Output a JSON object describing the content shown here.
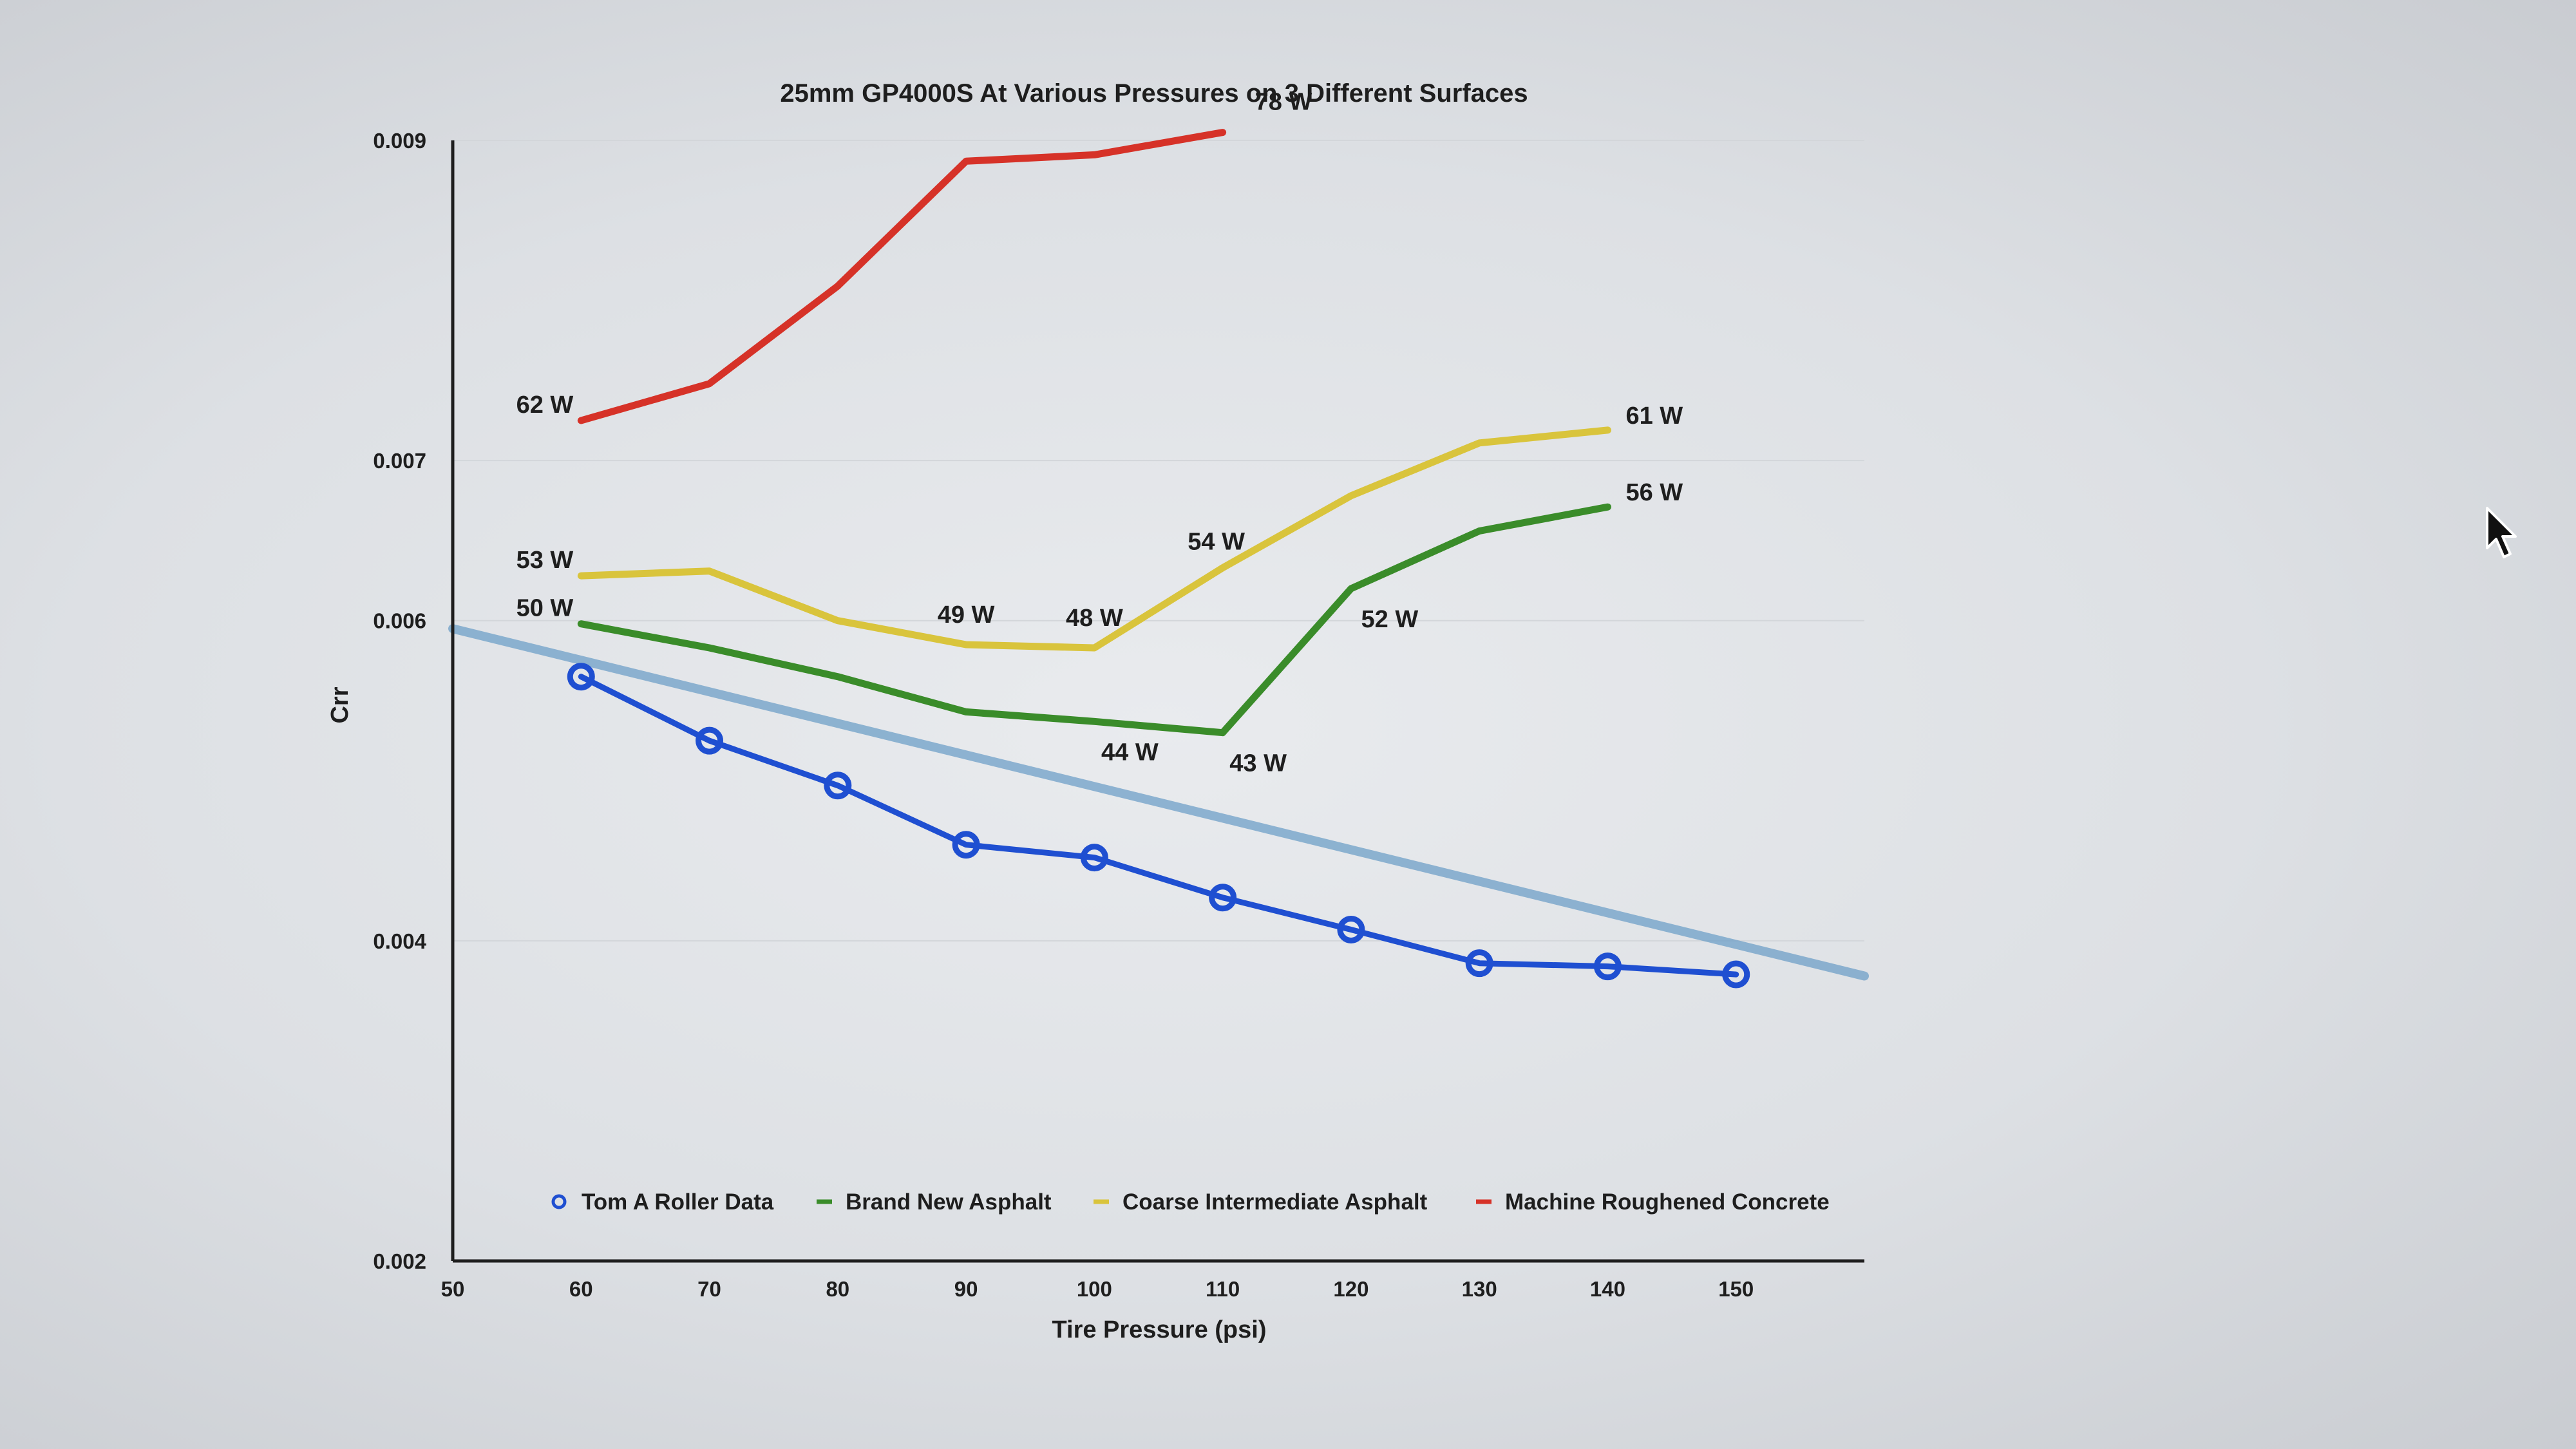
{
  "chart_data": {
    "type": "line",
    "title": "25mm GP4000S At Various Pressures on 3 Different Surfaces",
    "xlabel": "Tire Pressure (psi)",
    "ylabel": "Crr",
    "xlim": [
      50,
      160
    ],
    "ylim": [
      0.002,
      0.009
    ],
    "x_ticks": [
      50,
      60,
      70,
      80,
      90,
      100,
      110,
      120,
      130,
      140,
      150
    ],
    "y_ticks": [
      {
        "value": 0.002,
        "label": "0.002"
      },
      {
        "value": 0.004,
        "label": "0.004"
      },
      {
        "value": 0.006,
        "label": "0.006"
      },
      {
        "value": 0.007,
        "label": "0.007"
      },
      {
        "value": 0.009,
        "label": "0.009"
      }
    ],
    "y_tick_scale": {
      "note_values": "tick positions are evenly spaced as printed",
      "positions": [
        0.002,
        0.004,
        0.006,
        0.008,
        0.01
      ]
    },
    "grid": true,
    "legend_position": "bottom-inside",
    "series": [
      {
        "name": "Tom A Roller Data",
        "color": "#1f4fd1",
        "marker": "circle",
        "x": [
          60,
          70,
          80,
          90,
          100,
          110,
          120,
          130,
          140,
          150
        ],
        "y": [
          0.00565,
          0.00525,
          0.00497,
          0.0046,
          0.00452,
          0.00427,
          0.00407,
          0.00386,
          0.00384,
          0.00379
        ]
      },
      {
        "name": "Brand New Asphalt",
        "color": "#3a8c2a",
        "x": [
          60,
          70,
          80,
          90,
          100,
          110,
          120,
          130,
          140
        ],
        "y": [
          0.00598,
          0.00583,
          0.00565,
          0.00543,
          0.00537,
          0.0053,
          0.0062,
          0.00656,
          0.00671
        ],
        "point_labels": [
          {
            "x": 60,
            "text": "50 W"
          },
          {
            "x": 100,
            "text": "44 W"
          },
          {
            "x": 110,
            "text": "43 W"
          },
          {
            "x": 120,
            "text": "52 W"
          },
          {
            "x": 140,
            "text": "56 W"
          }
        ]
      },
      {
        "name": "Coarse Intermediate Asphalt",
        "color": "#d9c43c",
        "x": [
          60,
          70,
          80,
          90,
          100,
          110,
          120,
          130,
          140
        ],
        "y": [
          0.00628,
          0.00631,
          0.006,
          0.00585,
          0.00583,
          0.00633,
          0.00678,
          0.00711,
          0.00719
        ],
        "point_labels": [
          {
            "x": 60,
            "text": "53 W"
          },
          {
            "x": 90,
            "text": "49 W"
          },
          {
            "x": 100,
            "text": "48 W"
          },
          {
            "x": 110,
            "text": "54 W"
          },
          {
            "x": 140,
            "text": "61 W"
          }
        ]
      },
      {
        "name": "Machine Roughened Concrete",
        "color": "#d63228",
        "x": [
          60,
          70,
          80,
          90,
          100,
          110
        ],
        "y": [
          0.00725,
          0.00748,
          0.00809,
          0.00887,
          0.00891,
          0.00905
        ],
        "point_labels": [
          {
            "x": 60,
            "text": "62 W"
          },
          {
            "x": 110,
            "text": "78 W"
          }
        ]
      }
    ],
    "trend_line": {
      "color": "#6fa0c8",
      "x": [
        50,
        160
      ],
      "y": [
        0.00595,
        0.00378
      ]
    }
  },
  "colors": {
    "axis": "#1e1e1e",
    "grid": "#d3d6da"
  },
  "cursor": {
    "icon": "mouse-pointer-icon"
  }
}
